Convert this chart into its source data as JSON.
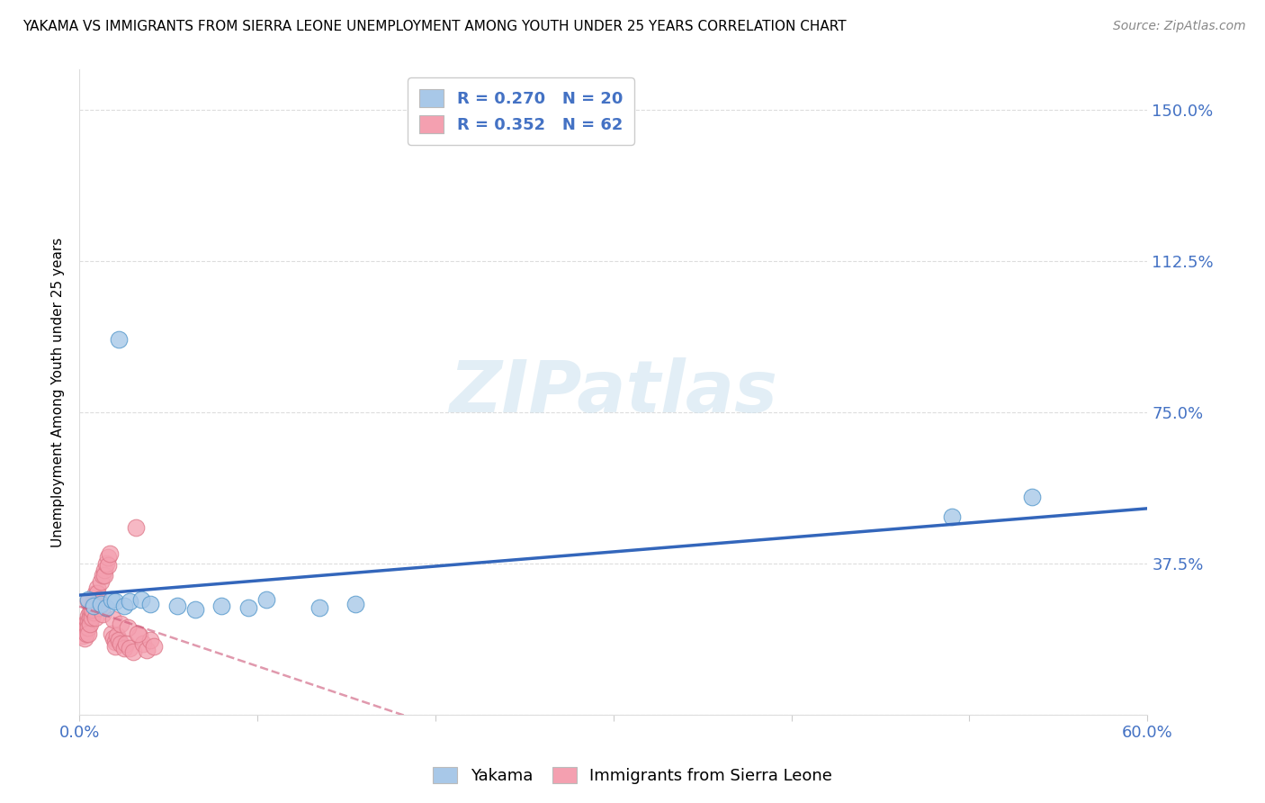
{
  "title": "YAKAMA VS IMMIGRANTS FROM SIERRA LEONE UNEMPLOYMENT AMONG YOUTH UNDER 25 YEARS CORRELATION CHART",
  "source": "Source: ZipAtlas.com",
  "ylabel": "Unemployment Among Youth under 25 years",
  "xlim": [
    0.0,
    0.6
  ],
  "ylim": [
    0.0,
    1.6
  ],
  "xtick_pos": [
    0.0,
    0.1,
    0.2,
    0.3,
    0.4,
    0.5,
    0.6
  ],
  "xtick_labels": [
    "0.0%",
    "",
    "",
    "",
    "",
    "",
    "60.0%"
  ],
  "ytick_values": [
    0.0,
    0.375,
    0.75,
    1.125,
    1.5
  ],
  "ytick_labels": [
    "",
    "37.5%",
    "75.0%",
    "112.5%",
    "150.0%"
  ],
  "watermark": "ZIPatlas",
  "blue_color": "#a8c8e8",
  "blue_edge_color": "#5599cc",
  "blue_line_color": "#3366bb",
  "pink_color": "#f4a0b0",
  "pink_edge_color": "#dd7788",
  "pink_line_color": "#cc5577",
  "legend_blue_label": "R = 0.270   N = 20",
  "legend_pink_label": "R = 0.352   N = 62",
  "bottom_labels": [
    "Yakama",
    "Immigrants from Sierra Leone"
  ],
  "blue_scatter_x": [
    0.005,
    0.008,
    0.012,
    0.015,
    0.018,
    0.02,
    0.022,
    0.025,
    0.028,
    0.035,
    0.04,
    0.055,
    0.065,
    0.08,
    0.095,
    0.105,
    0.135,
    0.155,
    0.49,
    0.535
  ],
  "blue_scatter_y": [
    0.285,
    0.27,
    0.275,
    0.265,
    0.285,
    0.28,
    0.93,
    0.27,
    0.28,
    0.285,
    0.275,
    0.27,
    0.26,
    0.27,
    0.265,
    0.285,
    0.265,
    0.275,
    0.49,
    0.54
  ],
  "pink_scatter_x": [
    0.002,
    0.002,
    0.003,
    0.003,
    0.003,
    0.004,
    0.004,
    0.004,
    0.005,
    0.005,
    0.005,
    0.005,
    0.006,
    0.006,
    0.006,
    0.007,
    0.007,
    0.007,
    0.008,
    0.008,
    0.008,
    0.009,
    0.009,
    0.009,
    0.01,
    0.01,
    0.011,
    0.011,
    0.012,
    0.013,
    0.014,
    0.014,
    0.015,
    0.016,
    0.016,
    0.017,
    0.018,
    0.019,
    0.02,
    0.02,
    0.021,
    0.022,
    0.023,
    0.025,
    0.026,
    0.028,
    0.03,
    0.032,
    0.034,
    0.036,
    0.038,
    0.04,
    0.042,
    0.005,
    0.007,
    0.009,
    0.011,
    0.013,
    0.019,
    0.023,
    0.027,
    0.033
  ],
  "pink_scatter_y": [
    0.21,
    0.195,
    0.22,
    0.205,
    0.19,
    0.23,
    0.215,
    0.2,
    0.245,
    0.23,
    0.215,
    0.2,
    0.255,
    0.24,
    0.225,
    0.27,
    0.255,
    0.24,
    0.285,
    0.27,
    0.255,
    0.3,
    0.285,
    0.27,
    0.315,
    0.3,
    0.285,
    0.27,
    0.33,
    0.345,
    0.36,
    0.345,
    0.375,
    0.39,
    0.37,
    0.4,
    0.2,
    0.19,
    0.18,
    0.17,
    0.195,
    0.185,
    0.175,
    0.165,
    0.175,
    0.165,
    0.155,
    0.465,
    0.195,
    0.175,
    0.16,
    0.185,
    0.17,
    0.28,
    0.26,
    0.24,
    0.265,
    0.25,
    0.235,
    0.225,
    0.215,
    0.2
  ],
  "background_color": "#ffffff",
  "grid_color": "#dddddd",
  "title_fontsize": 11,
  "source_fontsize": 10,
  "tick_fontsize": 13,
  "ylabel_fontsize": 11,
  "legend_fontsize": 13
}
